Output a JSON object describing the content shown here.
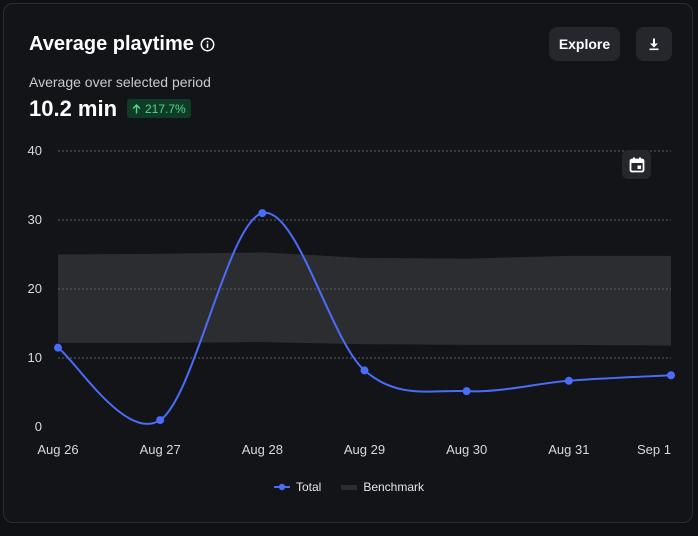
{
  "header": {
    "title": "Average playtime",
    "explore_label": "Explore",
    "info_icon": "info-icon",
    "download_icon": "download-icon"
  },
  "summary": {
    "subtitle": "Average over selected period",
    "value": "10.2 min",
    "delta": "217.7%",
    "delta_icon": "arrow-up-icon"
  },
  "colors": {
    "total": "#4a6cf7",
    "benchmark": "#2c2d31",
    "delta_bg": "#0f3b27",
    "delta_text": "#4fd98c"
  },
  "chart_data": {
    "type": "line",
    "categories": [
      "Aug 26",
      "Aug 27",
      "Aug 28",
      "Aug 29",
      "Aug 30",
      "Aug 31",
      "Sep 1"
    ],
    "ylim": [
      0,
      40
    ],
    "yticks": [
      0,
      10,
      20,
      30,
      40
    ],
    "grid": true,
    "legend_position": "bottom",
    "series": [
      {
        "name": "Total",
        "values": [
          11.5,
          1.0,
          31.0,
          8.2,
          5.2,
          6.7,
          7.5
        ]
      }
    ],
    "band": {
      "name": "Benchmark",
      "lower": [
        12.2,
        12.2,
        12.3,
        12.0,
        11.9,
        11.9,
        11.8
      ],
      "upper": [
        25.0,
        25.1,
        25.3,
        24.5,
        24.4,
        24.8,
        24.8
      ]
    }
  }
}
